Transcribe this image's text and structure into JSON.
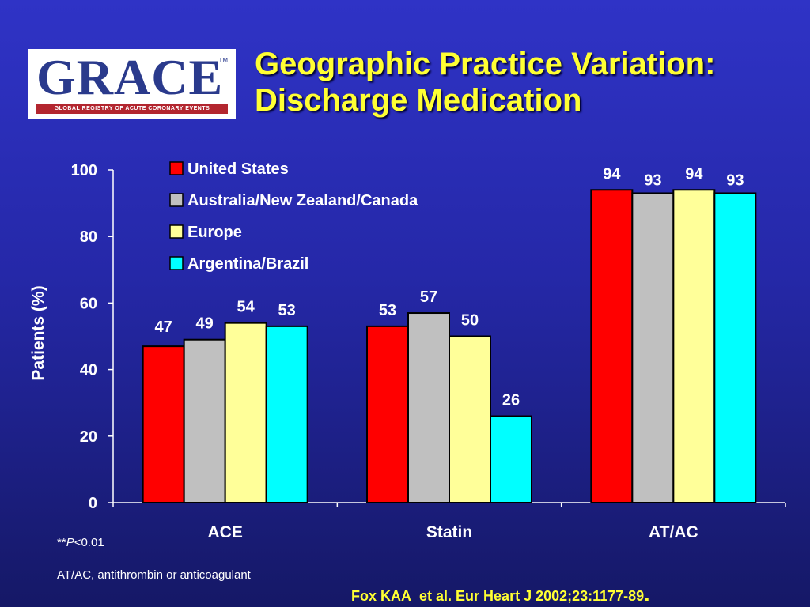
{
  "logo": {
    "text": "GRACE",
    "tm": "TM",
    "tagline": "GLOBAL REGISTRY OF ACUTE CORONARY EVENTS"
  },
  "title": {
    "line1": "Geographic Practice Variation:",
    "line2": "Discharge Medication"
  },
  "chart_data": {
    "type": "bar",
    "categories": [
      "ACE",
      "Statin",
      "AT/AC"
    ],
    "series": [
      {
        "name": "United States",
        "color": "#ff0000",
        "values": [
          47,
          53,
          94
        ]
      },
      {
        "name": "Australia/New Zealand/Canada",
        "color": "#c0c0c0",
        "values": [
          49,
          57,
          93
        ]
      },
      {
        "name": "Europe",
        "color": "#ffff99",
        "values": [
          54,
          50,
          94
        ]
      },
      {
        "name": "Argentina/Brazil",
        "color": "#00ffff",
        "values": [
          53,
          26,
          93
        ]
      }
    ],
    "ylabel": "Patients (%)",
    "ylim": [
      0,
      100
    ],
    "yticks": [
      "0",
      "20",
      "40",
      "60",
      "80",
      "100"
    ],
    "legend_position": "top-left",
    "grid": false,
    "data_labels": true
  },
  "footnotes": {
    "significance_stars": "**",
    "significance_p": "P",
    "significance_rest": "<0.01",
    "abbreviation": "AT/AC, antithrombin or anticoagulant"
  },
  "citation": {
    "authors": "Fox KAA",
    "rest": "et al. Eur Heart J 2002;23:1177-89",
    "period": "."
  }
}
